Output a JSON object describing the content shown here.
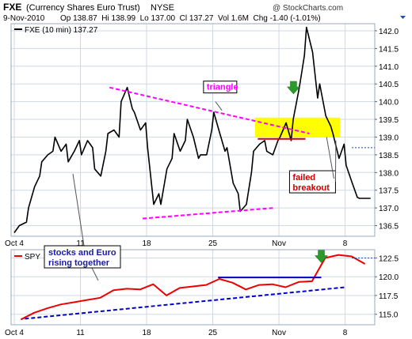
{
  "header": {
    "symbol": "FXE",
    "name": "(Currency Shares Euro Trust)",
    "exchange": "NYSE",
    "date": "9-Nov-2010",
    "quote": "Op 138.87  Hi 138.99  Lo 137.00  Cl 137.27  Vol 1.6M  Chg -1.40 (-1.01%)",
    "copyright": "@ StockCharts.com"
  },
  "colors": {
    "background": "#ffffff",
    "plot_border": "#9aa8bc",
    "grid": "#cfd8e6",
    "price_line": "#000000",
    "spy_line": "#ee0000",
    "triangle": "#ff00ff",
    "resistance_box": "#ffff00",
    "breakout_line": "#cc0000",
    "trend_blue": "#0000cc",
    "arrow": "#2a9a2a",
    "annotation_border": "#000000"
  },
  "chart_data": [
    {
      "type": "line",
      "panel": "top",
      "series": [
        {
          "name": "FXE (10 min) 137.27",
          "x": [
            "Oct 4 09:30",
            "Oct 4 12:00",
            "Oct 4 15:30",
            "Oct 5 10:00",
            "Oct 5 13:00",
            "Oct 5 15:30",
            "Oct 6 10:00",
            "Oct 6 13:00",
            "Oct 6 15:30",
            "Oct 7 10:00",
            "Oct 7 13:00",
            "Oct 7 15:30",
            "Oct 8 10:00",
            "Oct 8 13:00",
            "Oct 8 15:30",
            "Oct 11 10:00",
            "Oct 11 13:00",
            "Oct 11 15:30",
            "Oct 12 10:00",
            "Oct 12 13:00",
            "Oct 12 15:30",
            "Oct 13 10:00",
            "Oct 13 13:00",
            "Oct 13 15:30",
            "Oct 14 10:00",
            "Oct 14 13:00",
            "Oct 14 15:30",
            "Oct 15 10:00",
            "Oct 15 13:00",
            "Oct 15 15:30",
            "Oct 18 10:00",
            "Oct 18 13:00",
            "Oct 18 15:30",
            "Oct 19 10:00",
            "Oct 19 13:00",
            "Oct 19 15:30",
            "Oct 20 10:00",
            "Oct 20 13:00",
            "Oct 20 15:30",
            "Oct 21 10:00",
            "Oct 21 13:00",
            "Oct 21 15:30",
            "Oct 22 10:00",
            "Oct 22 13:00",
            "Oct 22 15:30",
            "Oct 25 10:00",
            "Oct 25 13:00",
            "Oct 25 15:30",
            "Oct 26 10:00",
            "Oct 26 13:00",
            "Oct 26 15:30",
            "Oct 27 10:00",
            "Oct 27 13:00",
            "Oct 27 15:30",
            "Oct 28 10:00",
            "Oct 28 13:00",
            "Oct 28 15:30",
            "Oct 29 10:00",
            "Oct 29 13:00",
            "Oct 29 15:30",
            "Nov 1 10:00",
            "Nov 1 13:00",
            "Nov 1 15:30",
            "Nov 2 10:00",
            "Nov 2 13:00",
            "Nov 2 15:30",
            "Nov 3 10:00",
            "Nov 3 13:00",
            "Nov 3 15:30",
            "Nov 4 10:00",
            "Nov 4 13:00",
            "Nov 4 15:30",
            "Nov 5 10:00",
            "Nov 5 13:00",
            "Nov 5 15:30",
            "Nov 8 10:00",
            "Nov 8 13:00",
            "Nov 8 15:30",
            "Nov 9 10:00",
            "Nov 9 13:00",
            "Nov 9 15:30"
          ],
          "values": [
            136.3,
            136.5,
            136.6,
            137.0,
            137.6,
            137.9,
            138.3,
            138.5,
            138.6,
            139.0,
            138.6,
            138.8,
            138.3,
            138.6,
            138.9,
            138.5,
            138.9,
            138.7,
            138.1,
            137.9,
            138.6,
            139.1,
            139.2,
            139.0,
            140.0,
            140.4,
            139.8,
            139.7,
            139.2,
            139.4,
            138.7,
            137.1,
            137.4,
            137.1,
            138.1,
            138.4,
            139.1,
            138.6,
            138.9,
            139.5,
            139.0,
            138.4,
            138.5,
            138.5,
            139.2,
            139.7,
            139.1,
            138.6,
            138.7,
            137.7,
            137.4,
            136.9,
            137.1,
            138.0,
            138.6,
            138.8,
            138.9,
            138.6,
            138.5,
            138.9,
            139.0,
            139.4,
            138.9,
            139.5,
            140.4,
            141.3,
            142.1,
            141.4,
            140.1,
            140.5,
            139.6,
            139.3,
            139.1,
            138.4,
            138.8,
            138.2,
            137.7,
            137.3,
            137.27,
            137.27,
            137.27
          ],
          "color": "#000000"
        }
      ],
      "xlim": [
        "Oct 4",
        "Nov 9"
      ],
      "ylim": [
        136.2,
        142.2
      ],
      "y_ticks": [
        136.5,
        137.0,
        137.5,
        138.0,
        138.5,
        139.0,
        139.5,
        140.0,
        140.5,
        141.0,
        141.5,
        142.0
      ],
      "y_tick_labels": [
        "136.5",
        "137.0",
        "137.5",
        "138.0",
        "138.5",
        "139.0",
        "139.5",
        "140.0",
        "140.5",
        "141.0",
        "141.5",
        "142.0"
      ],
      "x_ticks": [
        "Oct 4",
        "11",
        "18",
        "25",
        "Nov",
        "8"
      ],
      "right_marker": 138.7,
      "grid": true,
      "annotations": {
        "triangle_label": "triangle",
        "failed_label_line1": "failed",
        "failed_label_line2": "breakout"
      }
    },
    {
      "type": "line",
      "panel": "bottom",
      "series": [
        {
          "name": "SPY",
          "x": [
            "Oct 4",
            "Oct 5",
            "Oct 6",
            "Oct 7",
            "Oct 8",
            "Oct 11",
            "Oct 12",
            "Oct 13",
            "Oct 14",
            "Oct 15",
            "Oct 18",
            "Oct 19",
            "Oct 20",
            "Oct 21",
            "Oct 22",
            "Oct 25",
            "Oct 26",
            "Oct 27",
            "Oct 28",
            "Oct 29",
            "Nov 1",
            "Nov 2",
            "Nov 3",
            "Nov 4",
            "Nov 5",
            "Nov 8",
            "Nov 9"
          ],
          "values": [
            114.3,
            115.2,
            115.8,
            116.3,
            116.6,
            116.9,
            117.2,
            118.2,
            118.4,
            118.3,
            119.0,
            117.5,
            118.5,
            118.7,
            118.9,
            119.7,
            119.2,
            118.3,
            118.9,
            119.0,
            118.6,
            119.3,
            119.4,
            122.5,
            122.9,
            122.7,
            121.7
          ],
          "color": "#ee0000"
        }
      ],
      "xlim": [
        "Oct 4",
        "Nov 9"
      ],
      "ylim": [
        113.6,
        123.6
      ],
      "y_ticks": [
        115.0,
        117.5,
        120.0,
        122.5
      ],
      "y_tick_labels": [
        "115.0",
        "117.5",
        "120.0",
        "122.5"
      ],
      "x_ticks": [
        "Oct 4",
        "11",
        "18",
        "25",
        "Nov",
        "8"
      ],
      "right_marker": 122.5,
      "grid": true,
      "annotations": {
        "stocks_label_line1": "stocks and Euro",
        "stocks_label_line2": "rising together"
      }
    }
  ]
}
